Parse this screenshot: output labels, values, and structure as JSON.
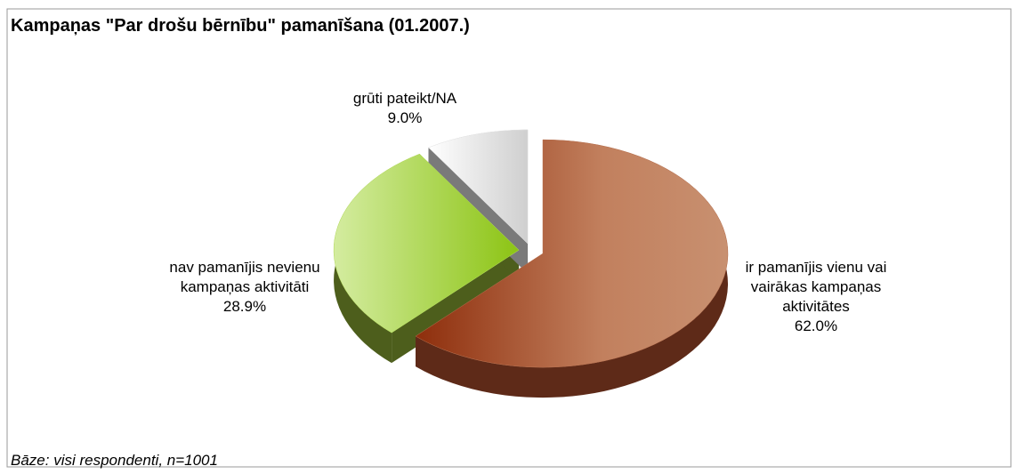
{
  "chart_data": {
    "type": "pie",
    "title": "Kampaņas \"Par drošu bērnību\" pamanīšana (01.2007.)",
    "categories": [
      "ir pamanījis vienu vai vairākas kampaņas aktivitātes",
      "nav pamanījis nevienu kampaņas aktivitāti",
      "grūti pateikt/NA"
    ],
    "values": [
      62.0,
      28.9,
      9.0
    ],
    "value_labels": [
      "62.0%",
      "28.9%",
      "9.0%"
    ],
    "colors": [
      "#b8704e",
      "#b4dc5a",
      "#e4e4e4"
    ],
    "footnote": "Bāze: visi respondenti, n=1001"
  }
}
